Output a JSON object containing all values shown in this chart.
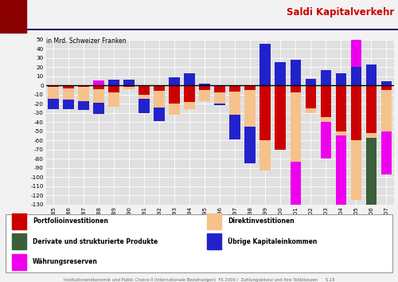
{
  "years": [
    1985,
    1986,
    1987,
    1988,
    1989,
    1990,
    1991,
    1992,
    1993,
    1994,
    1995,
    1996,
    1997,
    1998,
    1999,
    2000,
    2001,
    2002,
    2003,
    2004,
    2005,
    2006,
    2007
  ],
  "portfolioinvestitionen": [
    -2,
    -3,
    -2,
    -4,
    -8,
    -2,
    -10,
    -6,
    -20,
    -18,
    -5,
    -8,
    -7,
    -5,
    -60,
    -70,
    -8,
    -25,
    -35,
    -50,
    -60,
    -52,
    -5
  ],
  "direktinvestitionen": [
    -13,
    -13,
    -15,
    -15,
    -15,
    -2,
    -5,
    -18,
    -12,
    -8,
    -12,
    -12,
    -25,
    -40,
    -33,
    0,
    -75,
    -5,
    -5,
    -5,
    -65,
    -5,
    -45
  ],
  "derivate": [
    0,
    0,
    0,
    0,
    0,
    0,
    0,
    0,
    0,
    0,
    0,
    0,
    0,
    0,
    0,
    0,
    0,
    0,
    0,
    0,
    0,
    -105,
    0
  ],
  "uebrige_kapital": [
    -11,
    -10,
    -10,
    -12,
    6,
    6,
    -15,
    -15,
    9,
    13,
    2,
    -2,
    -27,
    -40,
    45,
    25,
    28,
    7,
    17,
    13,
    20,
    23,
    4
  ],
  "waehrungsreserven": [
    0,
    0,
    0,
    5,
    0,
    0,
    0,
    0,
    0,
    0,
    0,
    0,
    0,
    0,
    0,
    0,
    -85,
    0,
    -40,
    -80,
    40,
    0,
    -47
  ],
  "title": "Saldi Kapitalverkehr",
  "ylabel": "in Mrd. Schweizer Franken",
  "ylim": [
    -130,
    50
  ],
  "yticks": [
    50,
    40,
    30,
    20,
    10,
    0,
    -10,
    -20,
    -30,
    -40,
    -50,
    -60,
    -70,
    -80,
    -90,
    -100,
    -110,
    -120,
    -130
  ],
  "color_portfolio": "#CC0000",
  "color_direkt": "#F5C28C",
  "color_derivate": "#3A5F3A",
  "color_uebrige": "#2222CC",
  "color_waehrung": "#EE00EE",
  "page_bg": "#F2F2F2",
  "chart_bg": "#E0E0E0",
  "header_bg": "#FFFFFF"
}
